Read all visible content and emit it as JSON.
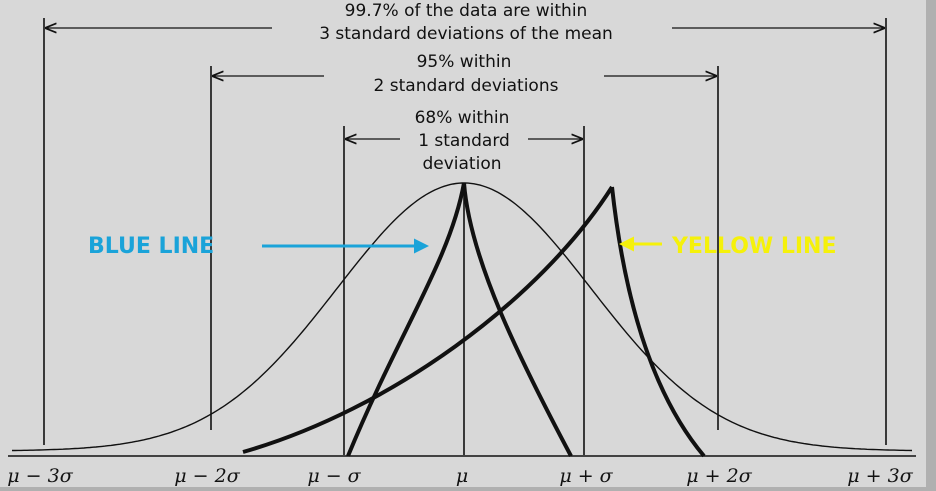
{
  "annotations": {
    "range_3sd_line1": "99.7% of the data are within",
    "range_3sd_line2": "3 standard deviations of the mean",
    "range_2sd_line1": "95% within",
    "range_2sd_line2": "2 standard deviations",
    "range_1sd_line1": "68% within",
    "range_1sd_line2": "1 standard",
    "range_1sd_line3": "deviation"
  },
  "axis_ticks": [
    "μ − 3σ",
    "μ − 2σ",
    "μ − σ",
    "μ",
    "μ + σ",
    "μ + 2σ",
    "μ + 3σ"
  ],
  "callouts": {
    "blue": {
      "label": "BLUE LINE",
      "color": "#1aa3d9"
    },
    "yellow": {
      "label": "YELLOW LINE",
      "color": "#f5f10a"
    }
  },
  "colors": {
    "background": "#d8d8d8",
    "ink": "#111111"
  }
}
